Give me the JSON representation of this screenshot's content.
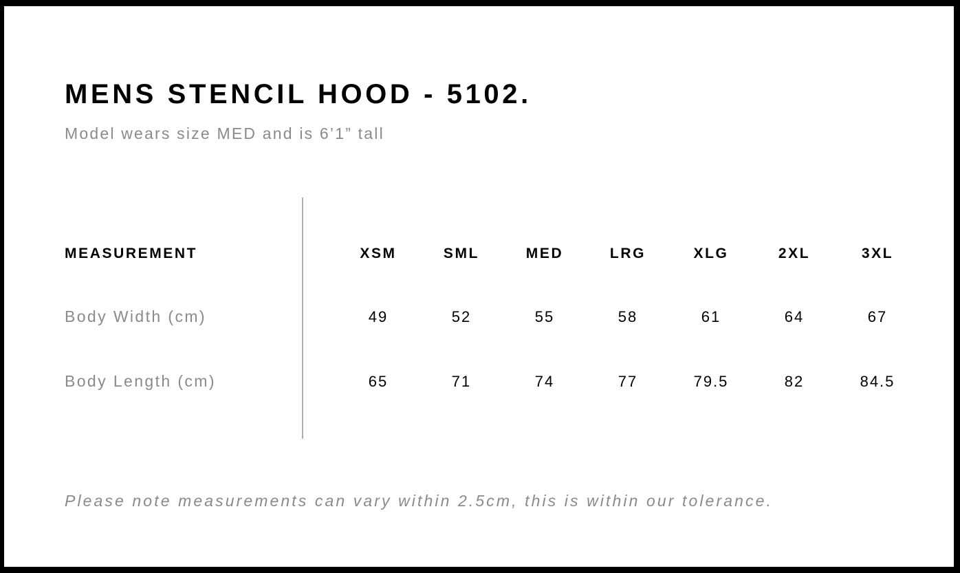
{
  "title": "MENS STENCIL HOOD - 5102.",
  "subtitle": "Model wears size MED and is 6’1” tall",
  "table": {
    "header_label": "MEASUREMENT",
    "sizes": [
      "XSM",
      "SML",
      "MED",
      "LRG",
      "XLG",
      "2XL",
      "3XL"
    ],
    "rows": [
      {
        "label": "Body Width (cm)",
        "values": [
          "49",
          "52",
          "55",
          "58",
          "61",
          "64",
          "67"
        ]
      },
      {
        "label": "Body Length (cm)",
        "values": [
          "65",
          "71",
          "74",
          "77",
          "79.5",
          "82",
          "84.5"
        ]
      }
    ]
  },
  "note": "Please note measurements can vary within 2.5cm, this is within our tolerance.",
  "colors": {
    "text": "#000000",
    "muted": "#8a8a8a",
    "frame": "#000000"
  }
}
